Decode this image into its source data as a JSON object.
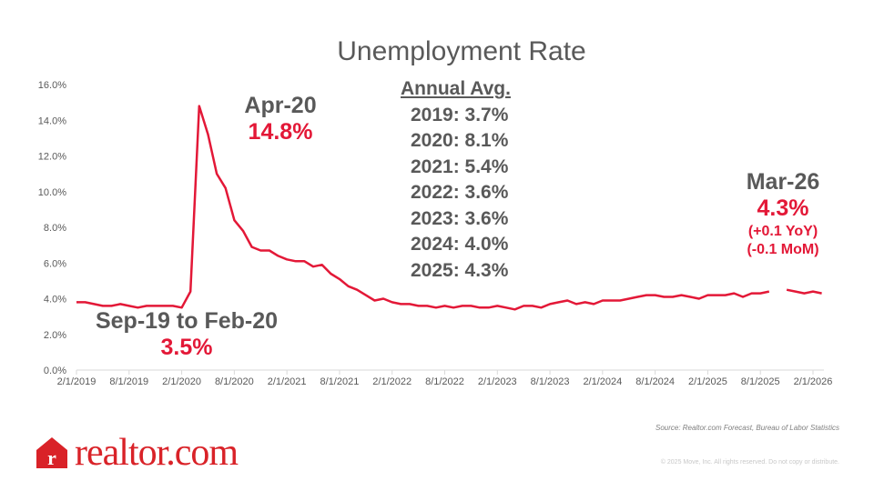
{
  "chart_data": {
    "type": "line",
    "title": "Unemployment Rate",
    "xlabel": "",
    "ylabel": "",
    "ylim": [
      0,
      16
    ],
    "yticks": [
      "0.0%",
      "2.0%",
      "4.0%",
      "6.0%",
      "8.0%",
      "10.0%",
      "12.0%",
      "14.0%",
      "16.0%"
    ],
    "xticks": [
      "2/1/2019",
      "8/1/2019",
      "2/1/2020",
      "8/1/2020",
      "2/1/2021",
      "8/1/2021",
      "2/1/2022",
      "8/1/2022",
      "2/1/2023",
      "8/1/2023",
      "2/1/2024",
      "8/1/2024",
      "2/1/2025",
      "8/1/2025",
      "2/1/2026"
    ],
    "x_start": "2019-02",
    "x_end": "2026-03",
    "grid": false,
    "series": [
      {
        "name": "Unemployment Rate",
        "color": "#e31837",
        "values": [
          3.8,
          3.8,
          3.7,
          3.6,
          3.6,
          3.7,
          3.6,
          3.5,
          3.6,
          3.6,
          3.6,
          3.6,
          3.5,
          4.4,
          14.8,
          13.2,
          11.0,
          10.2,
          8.4,
          7.8,
          6.9,
          6.7,
          6.7,
          6.4,
          6.2,
          6.1,
          6.1,
          5.8,
          5.9,
          5.4,
          5.1,
          4.7,
          4.5,
          4.2,
          3.9,
          4.0,
          3.8,
          3.7,
          3.7,
          3.6,
          3.6,
          3.5,
          3.6,
          3.5,
          3.6,
          3.6,
          3.5,
          3.5,
          3.6,
          3.5,
          3.4,
          3.6,
          3.6,
          3.5,
          3.7,
          3.8,
          3.9,
          3.7,
          3.8,
          3.7,
          3.9,
          3.9,
          3.9,
          4.0,
          4.1,
          4.2,
          4.2,
          4.1,
          4.1,
          4.2,
          4.1,
          4.0,
          4.2,
          4.2,
          4.2,
          4.3,
          4.1,
          4.3,
          4.3,
          4.4,
          null,
          4.5,
          4.4,
          4.3,
          4.4,
          4.3
        ]
      }
    ],
    "annotations": {
      "peak": {
        "label": "Apr-20",
        "value": "14.8%"
      },
      "pre": {
        "label": "Sep-19 to Feb-20",
        "value": "3.5%"
      },
      "latest": {
        "label": "Mar-26",
        "value": "4.3%",
        "yoy": "(+0.1 YoY)",
        "mom": "(-0.1 MoM)"
      },
      "annual_avg": {
        "heading": "Annual Avg.",
        "rows": [
          "2019: 3.7%",
          "2020: 8.1%",
          "2021: 5.4%",
          "2022: 3.6%",
          "2023: 3.6%",
          "2024: 4.0%",
          "2025: 4.3%"
        ]
      }
    }
  },
  "footer": {
    "source": "Source: Realtor.com Forecast, Bureau of Labor Statistics",
    "copyright": "© 2025 Move, Inc. All rights reserved. Do not copy or distribute.",
    "logo_text": "realtor.com",
    "logo_icon_letter": "r"
  }
}
